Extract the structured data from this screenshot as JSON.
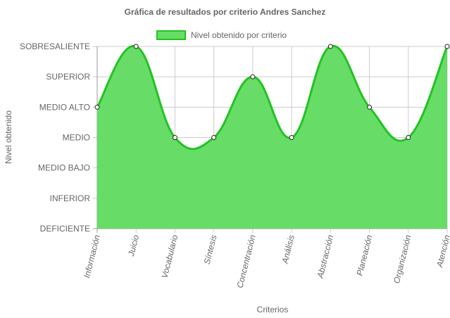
{
  "chart_data": {
    "type": "area",
    "title": "Gráfica de resultados por criterio Andres Sanchez",
    "xlabel": "Criterios",
    "ylabel": "Nivel obtenido",
    "levels": [
      "DEFICIENTE",
      "INFERIOR",
      "MEDIO BAJO",
      "MEDIO",
      "MEDIO ALTO",
      "SUPERIOR",
      "SOBRESALIENTE"
    ],
    "ylim": [
      0,
      6
    ],
    "categories": [
      "Información",
      "Juicio",
      "Vocabulario",
      "Síntesis",
      "Concentración",
      "Análisis",
      "Abstracción",
      "Planeación",
      "Organización",
      "Atención"
    ],
    "series": [
      {
        "name": "Nivel obtenido por criterio",
        "labels": [
          "MEDIO ALTO",
          "SOBRESALIENTE",
          "MEDIO",
          "MEDIO",
          "SUPERIOR",
          "MEDIO",
          "SOBRESALIENTE",
          "MEDIO ALTO",
          "MEDIO",
          "SOBRESALIENTE"
        ],
        "values": [
          4,
          6,
          3,
          3,
          5,
          3,
          6,
          4,
          3,
          6
        ]
      }
    ],
    "grid": true,
    "legend_position": "top",
    "colors": {
      "fill": "#67dd67",
      "line": "#22c322",
      "grid": "#cccccc",
      "axis": "#999999"
    }
  }
}
